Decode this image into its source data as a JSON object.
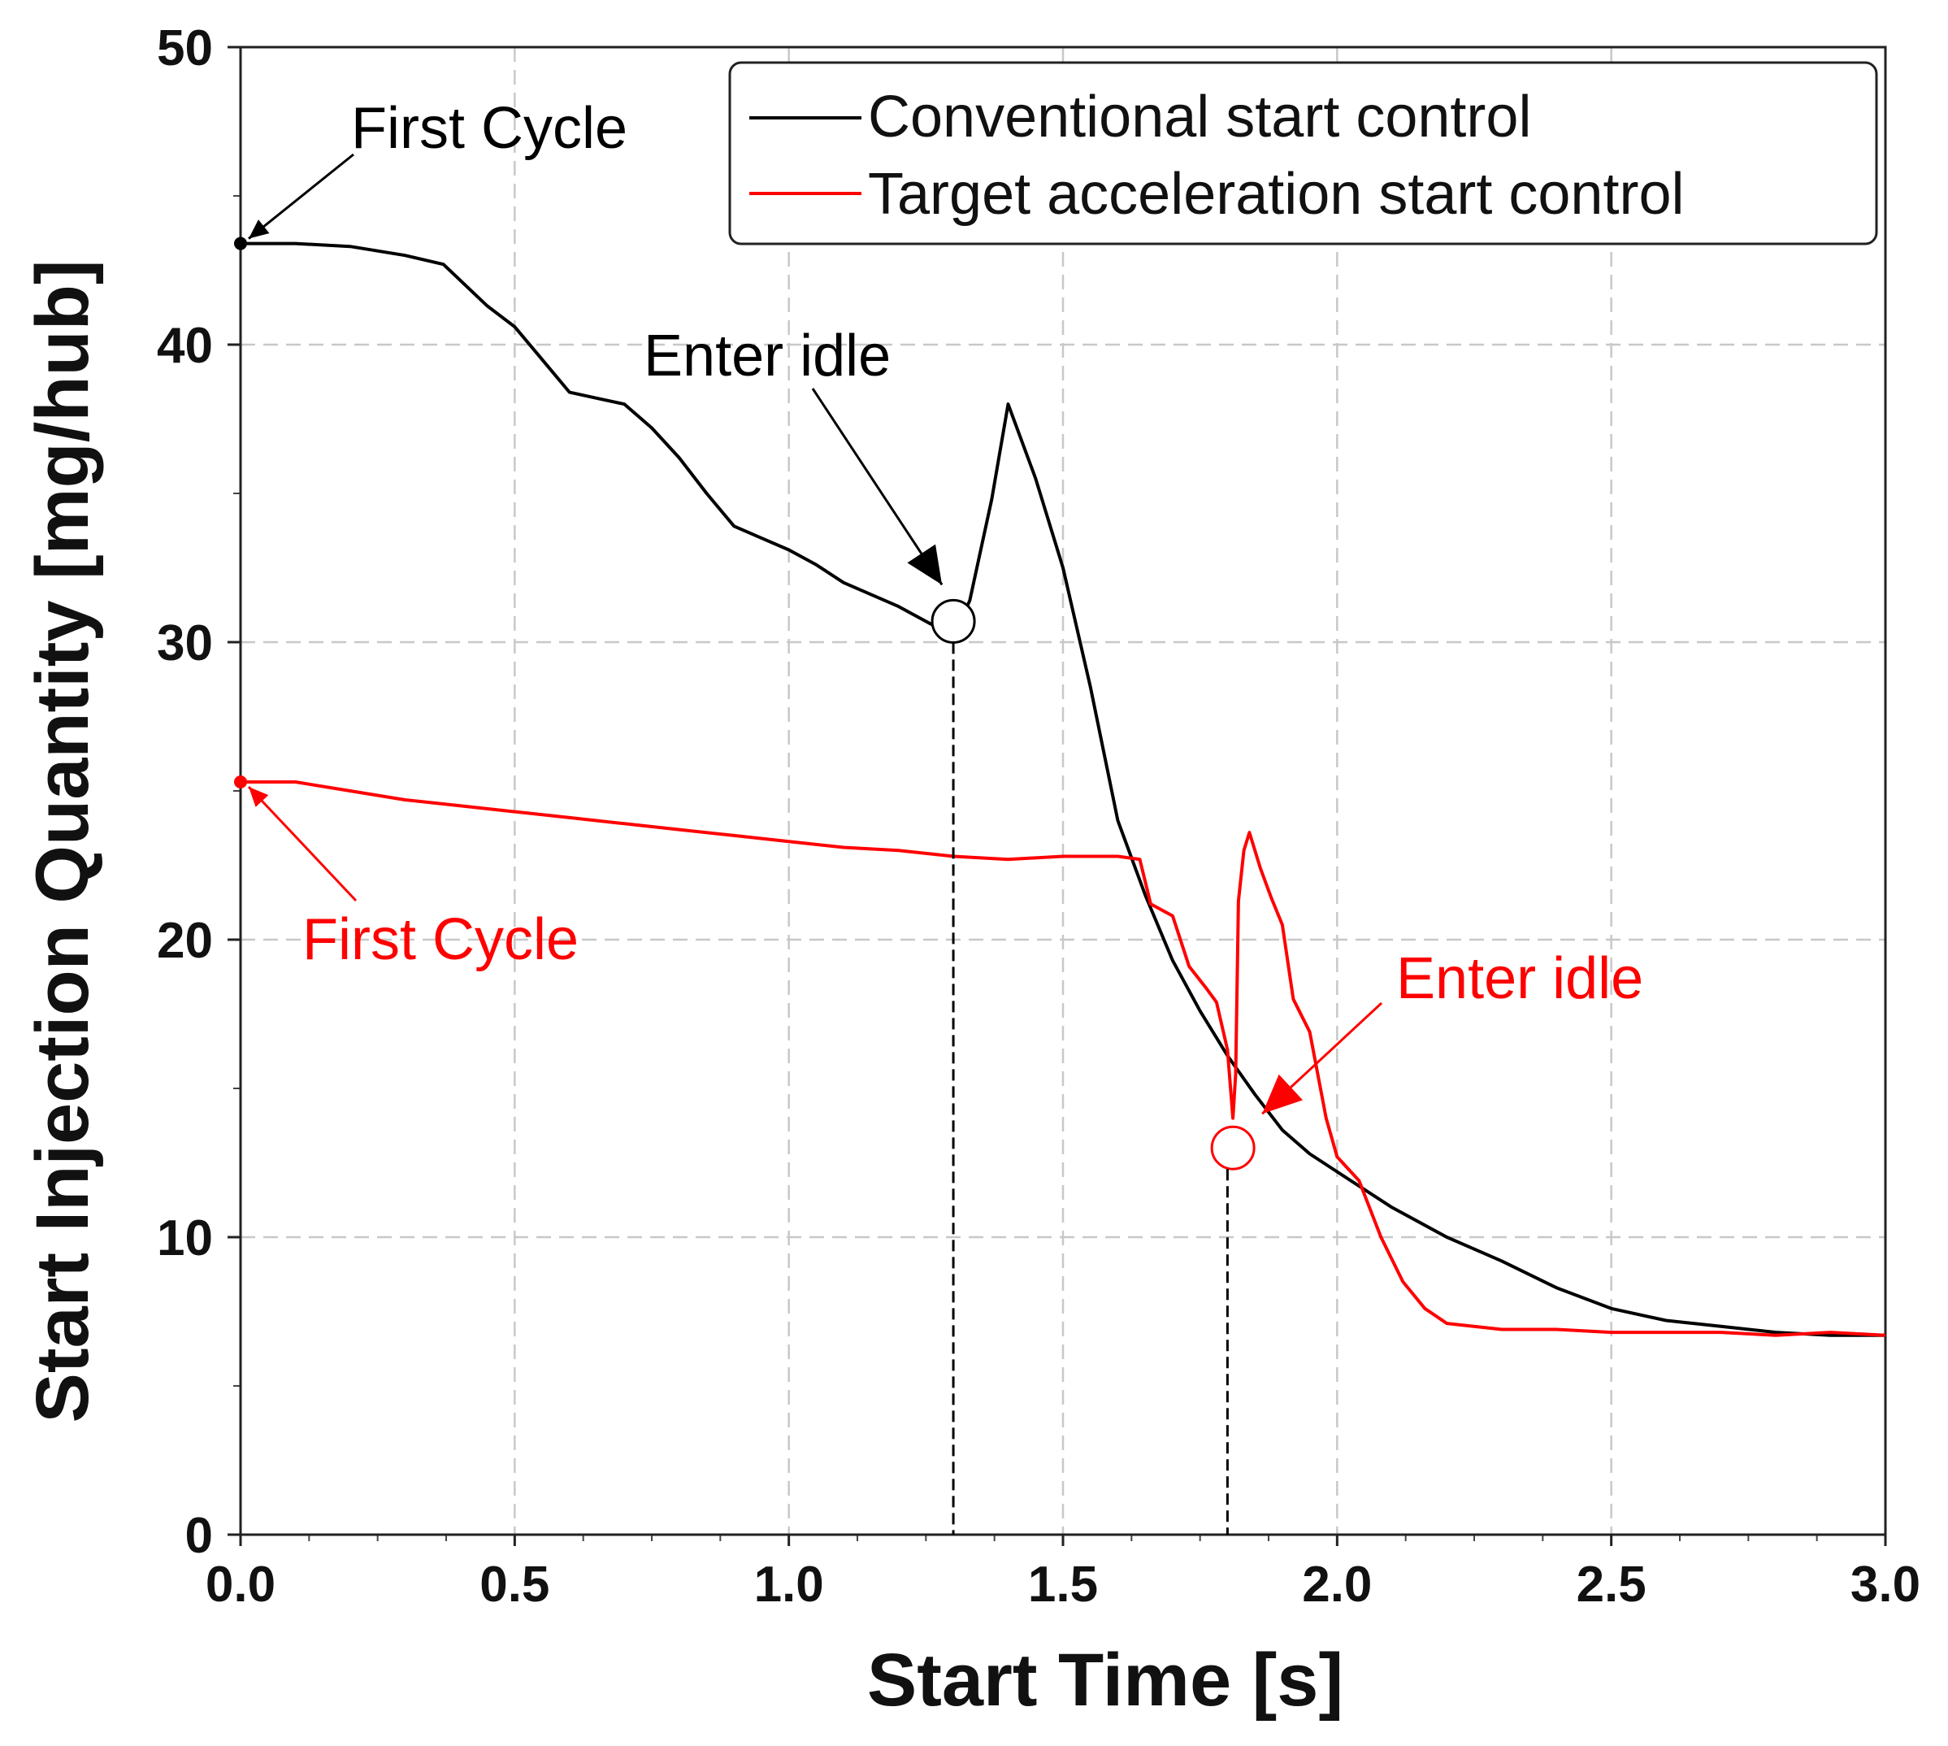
{
  "chart_data": {
    "type": "line",
    "title": "",
    "xlabel": "Start Time [s]",
    "ylabel": "Start Injection Quantity [mg/hub]",
    "xlim": [
      0,
      3.0
    ],
    "ylim": [
      0,
      50
    ],
    "x_ticks": [
      "0.0",
      "0.5",
      "1.0",
      "1.5",
      "2.0",
      "2.5",
      "3.0"
    ],
    "y_ticks": [
      "0",
      "10",
      "20",
      "30",
      "40",
      "50"
    ],
    "grid": true,
    "legend_position": "top-right",
    "series": [
      {
        "name": "Conventional start control",
        "color": "#000000",
        "points": [
          [
            0.0,
            43.4
          ],
          [
            0.1,
            43.4
          ],
          [
            0.2,
            43.3
          ],
          [
            0.3,
            43.0
          ],
          [
            0.37,
            42.7
          ],
          [
            0.45,
            41.3
          ],
          [
            0.5,
            40.6
          ],
          [
            0.55,
            39.5
          ],
          [
            0.6,
            38.4
          ],
          [
            0.65,
            38.2
          ],
          [
            0.7,
            38.0
          ],
          [
            0.75,
            37.2
          ],
          [
            0.8,
            36.2
          ],
          [
            0.85,
            35.0
          ],
          [
            0.9,
            33.9
          ],
          [
            0.95,
            33.5
          ],
          [
            1.0,
            33.1
          ],
          [
            1.05,
            32.6
          ],
          [
            1.1,
            32.0
          ],
          [
            1.15,
            31.6
          ],
          [
            1.2,
            31.2
          ],
          [
            1.25,
            30.7
          ],
          [
            1.3,
            30.2
          ],
          [
            1.33,
            31.4
          ],
          [
            1.37,
            34.8
          ],
          [
            1.4,
            38.0
          ],
          [
            1.45,
            35.5
          ],
          [
            1.5,
            32.5
          ],
          [
            1.55,
            28.5
          ],
          [
            1.6,
            24.0
          ],
          [
            1.65,
            21.5
          ],
          [
            1.7,
            19.3
          ],
          [
            1.75,
            17.6
          ],
          [
            1.8,
            16.1
          ],
          [
            1.85,
            14.8
          ],
          [
            1.9,
            13.6
          ],
          [
            1.95,
            12.8
          ],
          [
            2.0,
            12.2
          ],
          [
            2.1,
            11.0
          ],
          [
            2.2,
            10.0
          ],
          [
            2.3,
            9.2
          ],
          [
            2.4,
            8.3
          ],
          [
            2.5,
            7.6
          ],
          [
            2.6,
            7.2
          ],
          [
            2.7,
            7.0
          ],
          [
            2.8,
            6.8
          ],
          [
            2.9,
            6.7
          ],
          [
            3.0,
            6.7
          ]
        ]
      },
      {
        "name": "Target acceleration start control",
        "color": "#ff0000",
        "points": [
          [
            0.0,
            25.3
          ],
          [
            0.1,
            25.3
          ],
          [
            0.2,
            25.0
          ],
          [
            0.3,
            24.7
          ],
          [
            0.4,
            24.5
          ],
          [
            0.5,
            24.3
          ],
          [
            0.6,
            24.1
          ],
          [
            0.7,
            23.9
          ],
          [
            0.8,
            23.7
          ],
          [
            0.9,
            23.5
          ],
          [
            1.0,
            23.3
          ],
          [
            1.1,
            23.1
          ],
          [
            1.2,
            23.0
          ],
          [
            1.3,
            22.8
          ],
          [
            1.4,
            22.7
          ],
          [
            1.5,
            22.8
          ],
          [
            1.6,
            22.8
          ],
          [
            1.64,
            22.7
          ],
          [
            1.66,
            21.2
          ],
          [
            1.7,
            20.8
          ],
          [
            1.73,
            19.1
          ],
          [
            1.76,
            18.4
          ],
          [
            1.78,
            17.9
          ],
          [
            1.8,
            16.3
          ],
          [
            1.81,
            14.0
          ],
          [
            1.815,
            15.5
          ],
          [
            1.82,
            21.3
          ],
          [
            1.83,
            23.0
          ],
          [
            1.84,
            23.6
          ],
          [
            1.86,
            22.4
          ],
          [
            1.88,
            21.4
          ],
          [
            1.9,
            20.5
          ],
          [
            1.92,
            18.0
          ],
          [
            1.95,
            16.9
          ],
          [
            1.98,
            14.0
          ],
          [
            2.0,
            12.7
          ],
          [
            2.04,
            11.9
          ],
          [
            2.08,
            10.0
          ],
          [
            2.12,
            8.5
          ],
          [
            2.16,
            7.6
          ],
          [
            2.2,
            7.1
          ],
          [
            2.3,
            6.9
          ],
          [
            2.4,
            6.9
          ],
          [
            2.5,
            6.8
          ],
          [
            2.6,
            6.8
          ],
          [
            2.7,
            6.8
          ],
          [
            2.8,
            6.7
          ],
          [
            2.9,
            6.8
          ],
          [
            3.0,
            6.7
          ]
        ]
      }
    ],
    "annotations": [
      {
        "text": "First Cycle",
        "color": "#000000",
        "point": [
          0.0,
          43.4
        ]
      },
      {
        "text": "Enter idle",
        "color": "#000000",
        "point": [
          1.3,
          30.7
        ]
      },
      {
        "text": "First Cycle",
        "color": "#ff0000",
        "point": [
          0.0,
          25.3
        ]
      },
      {
        "text": "Enter idle",
        "color": "#ff0000",
        "point": [
          1.81,
          13.0
        ]
      }
    ]
  }
}
